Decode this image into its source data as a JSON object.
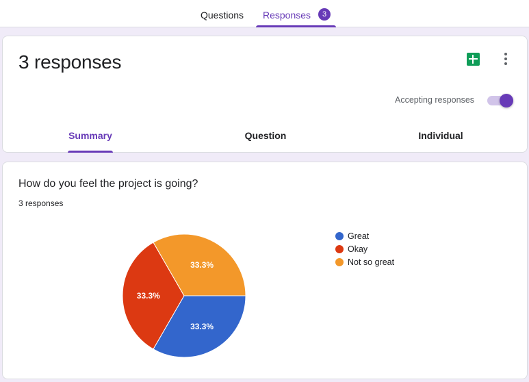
{
  "top_tabs": {
    "questions_label": "Questions",
    "responses_label": "Responses",
    "responses_badge": "3"
  },
  "header": {
    "title": "3 responses",
    "sheets_icon": "google-sheets-icon",
    "more_icon": "more-vert-icon",
    "accepting_label": "Accepting responses",
    "accepting_on": true,
    "tabs": [
      "Summary",
      "Question",
      "Individual"
    ],
    "active_tab": "Summary"
  },
  "question": {
    "title": "How do you feel the project is going?",
    "response_count": "3 responses"
  },
  "colors": {
    "accent": "#673ab7",
    "sheets_green": "#0f9d58",
    "background": "#f0ebf8"
  },
  "chart_data": {
    "type": "pie",
    "slices": [
      {
        "label": "Great",
        "value": 33.3,
        "display": "33.3%",
        "color": "#3366cc"
      },
      {
        "label": "Okay",
        "value": 33.3,
        "display": "33.3%",
        "color": "#dc3912"
      },
      {
        "label": "Not so great",
        "value": 33.3,
        "display": "33.3%",
        "color": "#f3982a"
      }
    ],
    "legend_position": "right"
  }
}
